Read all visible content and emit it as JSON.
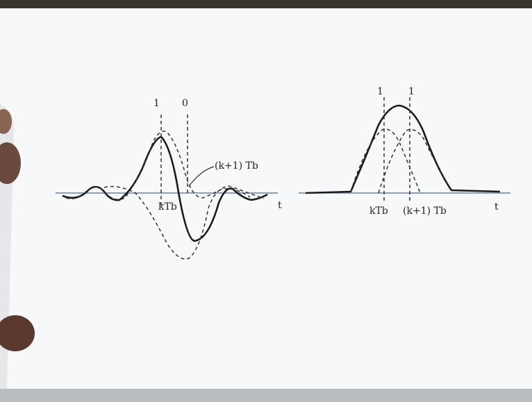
{
  "left": {
    "peak_labels": [
      "1",
      "0"
    ],
    "time_labels": [
      "kTb",
      "(k+1) Tb"
    ],
    "axis_label": "t"
  },
  "right": {
    "peak_labels": [
      "1",
      "1"
    ],
    "time_labels": [
      "kTb",
      "(k+1) Tb"
    ],
    "axis_label": "t"
  }
}
